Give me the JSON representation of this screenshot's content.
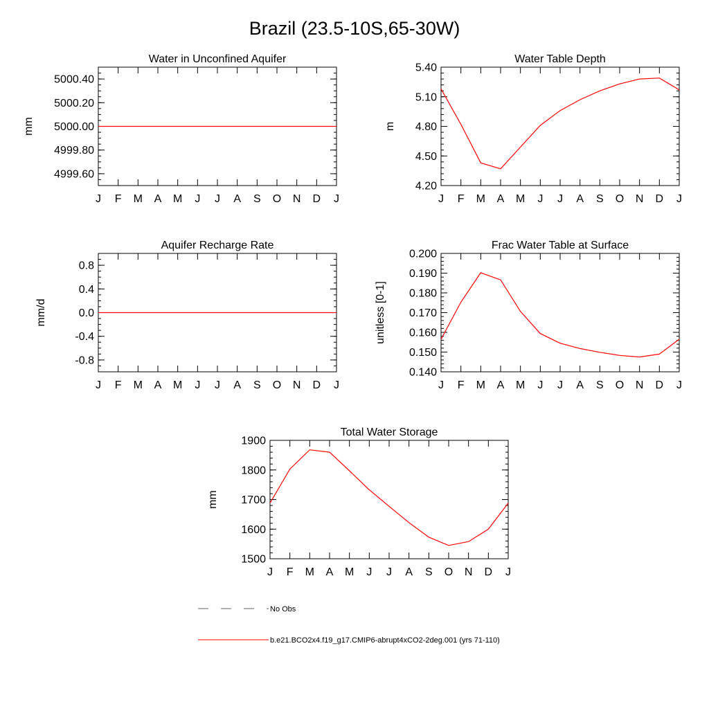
{
  "figure_title": "Brazil (23.5-10S,65-30W)",
  "chart_data": [
    {
      "id": "aquifer",
      "type": "line",
      "title": "Water in Unconfined Aquifer",
      "ylabel": "mm",
      "xlabel": "",
      "categories": [
        "J",
        "F",
        "M",
        "A",
        "M",
        "J",
        "J",
        "A",
        "S",
        "O",
        "N",
        "D",
        "J"
      ],
      "ylim": [
        4999.5,
        5000.5
      ],
      "yticks": [
        "5000.40",
        "5000.20",
        "5000.00",
        "4999.80",
        "4999.60"
      ],
      "ytick_values": [
        5000.4,
        5000.2,
        5000.0,
        4999.8,
        4999.6
      ],
      "minor_step": 0.05,
      "series": [
        {
          "name": "b.e21.BCO2x4.f19_g17.CMIP6-abrupt4xCO2-2deg.001 (yrs 71-110)",
          "color": "#ff0000",
          "values": [
            5000,
            5000,
            5000,
            5000,
            5000,
            5000,
            5000,
            5000,
            5000,
            5000,
            5000,
            5000,
            5000
          ]
        }
      ]
    },
    {
      "id": "wtd",
      "type": "line",
      "title": "Water Table Depth",
      "ylabel": "m",
      "xlabel": "",
      "categories": [
        "J",
        "F",
        "M",
        "A",
        "M",
        "J",
        "J",
        "A",
        "S",
        "O",
        "N",
        "D",
        "J"
      ],
      "ylim": [
        4.2,
        5.4
      ],
      "yticks": [
        "5.40",
        "5.10",
        "4.80",
        "4.50",
        "4.20"
      ],
      "ytick_values": [
        5.4,
        5.1,
        4.8,
        4.5,
        4.2
      ],
      "minor_step": 0.06,
      "series": [
        {
          "name": "b.e21.BCO2x4.f19_g17.CMIP6-abrupt4xCO2-2deg.001 (yrs 71-110)",
          "color": "#ff0000",
          "values": [
            5.18,
            4.82,
            4.43,
            4.37,
            4.59,
            4.81,
            4.96,
            5.07,
            5.16,
            5.23,
            5.28,
            5.29,
            5.17
          ]
        }
      ]
    },
    {
      "id": "recharge",
      "type": "line",
      "title": "Aquifer Recharge Rate",
      "ylabel": "mm/d",
      "xlabel": "",
      "categories": [
        "J",
        "F",
        "M",
        "A",
        "M",
        "J",
        "J",
        "A",
        "S",
        "O",
        "N",
        "D",
        "J"
      ],
      "ylim": [
        -1.0,
        1.0
      ],
      "yticks": [
        "0.8",
        "0.4",
        "0.0",
        "-0.4",
        "-0.8"
      ],
      "ytick_values": [
        0.8,
        0.4,
        0.0,
        -0.4,
        -0.8
      ],
      "minor_step": 0.1,
      "series": [
        {
          "name": "b.e21.BCO2x4.f19_g17.CMIP6-abrupt4xCO2-2deg.001 (yrs 71-110)",
          "color": "#ff0000",
          "values": [
            0,
            0,
            0,
            0,
            0,
            0,
            0,
            0,
            0,
            0,
            0,
            0,
            0
          ]
        }
      ]
    },
    {
      "id": "frac",
      "type": "line",
      "title": "Frac Water Table at Surface",
      "ylabel": "unitless [0-1]",
      "xlabel": "",
      "categories": [
        "J",
        "F",
        "M",
        "A",
        "M",
        "J",
        "J",
        "A",
        "S",
        "O",
        "N",
        "D",
        "J"
      ],
      "ylim": [
        0.14,
        0.2
      ],
      "yticks": [
        "0.200",
        "0.190",
        "0.180",
        "0.170",
        "0.160",
        "0.150",
        "0.140"
      ],
      "ytick_values": [
        0.2,
        0.19,
        0.18,
        0.17,
        0.16,
        0.15,
        0.14
      ],
      "minor_step": 0.002,
      "series": [
        {
          "name": "b.e21.BCO2x4.f19_g17.CMIP6-abrupt4xCO2-2deg.001 (yrs 71-110)",
          "color": "#ff0000",
          "values": [
            0.1565,
            0.1753,
            0.1902,
            0.1866,
            0.1706,
            0.1594,
            0.1545,
            0.1518,
            0.1499,
            0.1483,
            0.1475,
            0.149,
            0.1565
          ]
        }
      ]
    },
    {
      "id": "tws",
      "type": "line",
      "title": "Total Water Storage",
      "ylabel": "mm",
      "xlabel": "",
      "categories": [
        "J",
        "F",
        "M",
        "A",
        "M",
        "J",
        "J",
        "A",
        "S",
        "O",
        "N",
        "D",
        "J"
      ],
      "ylim": [
        1500,
        1900
      ],
      "yticks": [
        "1900",
        "1800",
        "1700",
        "1600",
        "1500"
      ],
      "ytick_values": [
        1900,
        1800,
        1700,
        1600,
        1500
      ],
      "minor_step": 20,
      "series": [
        {
          "name": "b.e21.BCO2x4.f19_g17.CMIP6-abrupt4xCO2-2deg.001 (yrs 71-110)",
          "color": "#ff0000",
          "values": [
            1688,
            1803,
            1868,
            1860,
            1797,
            1733,
            1677,
            1622,
            1573,
            1545,
            1558,
            1600,
            1688
          ]
        }
      ]
    }
  ],
  "legend": {
    "items": [
      {
        "label": "No Obs",
        "color": "#666666",
        "style": "dashed"
      },
      {
        "label": "b.e21.BCO2x4.f19_g17.CMIP6-abrupt4xCO2-2deg.001 (yrs 71-110)",
        "color": "#ff0000",
        "style": "solid"
      }
    ]
  }
}
